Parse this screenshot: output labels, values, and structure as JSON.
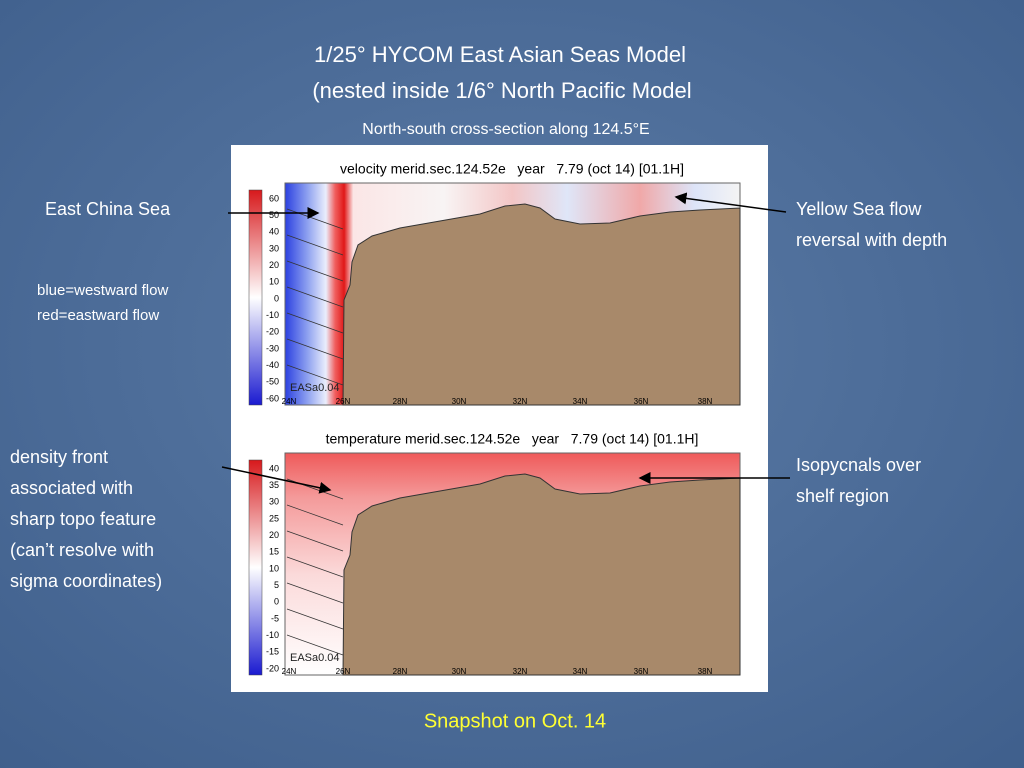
{
  "title_lines": [
    "1/25° HYCOM East Asian Seas Model",
    "(nested inside 1/6° North Pacific Model"
  ],
  "subtitle": "North-south cross-section along 124.5°E",
  "panels": [
    {
      "title": "velocity merid.sec.124.52e   year   7.79 (oct 14) [01.1H]",
      "colorbar_ticks": [
        60,
        50,
        40,
        30,
        20,
        10,
        0,
        -10,
        -20,
        -30,
        -40,
        -50,
        -60
      ],
      "x_labels": [
        "24N",
        "26N",
        "28N",
        "30N",
        "32N",
        "34N",
        "36N",
        "38N"
      ],
      "stamp": "EASa0.04"
    },
    {
      "title": "temperature merid.sec.124.52e   year   7.79 (oct 14) [01.1H]",
      "colorbar_ticks": [
        40,
        35,
        30,
        25,
        20,
        15,
        10,
        5,
        0,
        -5,
        -10,
        -15,
        -20
      ],
      "x_labels": [
        "24N",
        "26N",
        "28N",
        "30N",
        "32N",
        "34N",
        "36N",
        "38N"
      ],
      "stamp": "EASa0.04"
    }
  ],
  "annotations": {
    "east_china_sea": "East China Sea",
    "legend": [
      "blue=westward flow",
      "red=eastward flow"
    ],
    "yellow_sea": [
      "Yellow Sea flow",
      "reversal with depth"
    ],
    "density_front": [
      "density front",
      "associated with",
      "sharp topo feature",
      "(can’t resolve with",
      "sigma coordinates)"
    ],
    "isopycnals": [
      "Isopycnals over",
      "shelf region"
    ]
  },
  "caption": "Snapshot on Oct. 14"
}
